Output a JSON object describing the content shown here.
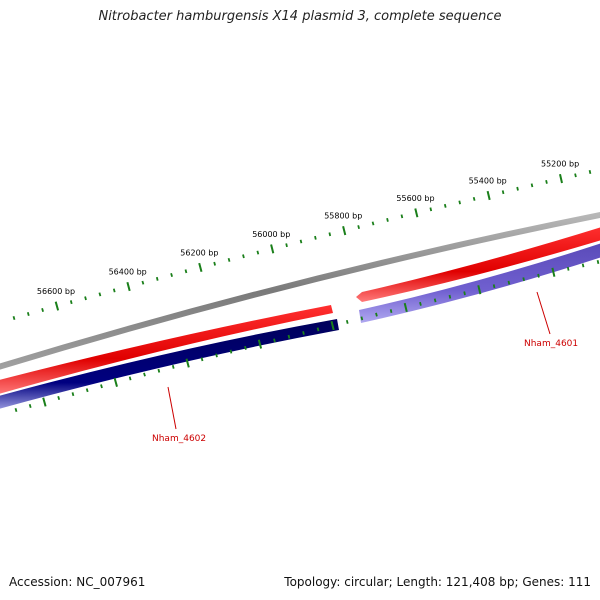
{
  "title": "Nitrobacter hamburgensis X14 plasmid 3, complete sequence",
  "footer": {
    "accession": "Accession: NC_007961",
    "summary": "Topology: circular; Length: 121,408 bp; Genes: 111"
  },
  "colors": {
    "backbone": "#8a8a8a",
    "forward_strand": "#ee0000",
    "reverse_strand_1": "#000080",
    "reverse_strand_2": "#6a5acd",
    "ticks": "#1a7f1a",
    "gene_label": "#cc0000"
  },
  "ticks": {
    "major_labels": [
      "56600 bp",
      "56400 bp",
      "56200 bp",
      "56000 bp",
      "55800 bp",
      "55600 bp",
      "55400 bp",
      "55200 bp"
    ]
  },
  "genes": [
    {
      "name": "Nham_4602",
      "strand": "reverse"
    },
    {
      "name": "Nham_4601",
      "strand": "reverse"
    }
  ]
}
